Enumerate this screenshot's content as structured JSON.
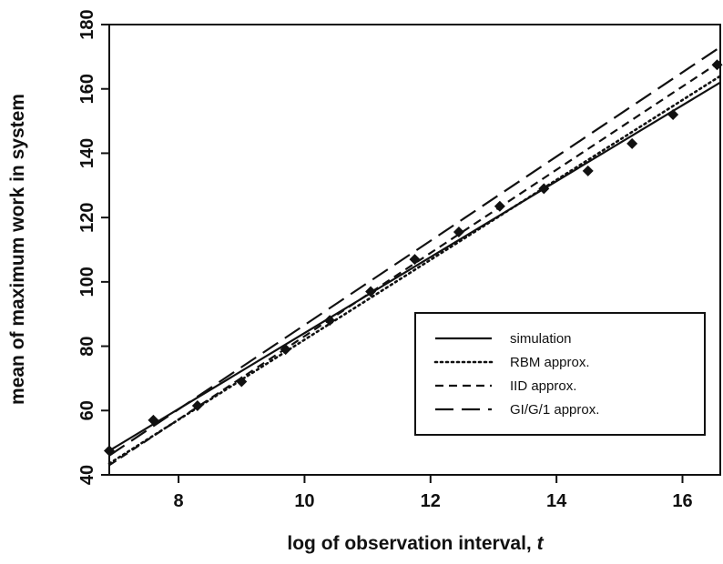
{
  "chart_data": {
    "type": "line",
    "xlabel": "log of observation interval,",
    "xlabel_var": "t",
    "ylabel": "mean of maximum work in system",
    "xlim": [
      6.9,
      16.6
    ],
    "ylim": [
      40,
      180
    ],
    "xticks": [
      8,
      10,
      12,
      14,
      16
    ],
    "yticks": [
      40,
      60,
      80,
      100,
      120,
      140,
      160,
      180
    ],
    "legend_position": "bottom-right",
    "series": [
      {
        "name": "simulation",
        "style": "solid",
        "kind": "line",
        "x": [
          6.9,
          16.6
        ],
        "y": [
          47.5,
          162.0
        ]
      },
      {
        "name": "RBM approx.",
        "style": "dotted",
        "kind": "line",
        "x": [
          6.9,
          16.6
        ],
        "y": [
          43.5,
          164.0
        ]
      },
      {
        "name": "IID approx.",
        "style": "dashed",
        "kind": "line",
        "x": [
          6.9,
          16.6
        ],
        "y": [
          43.0,
          168.5
        ]
      },
      {
        "name": "GI/G/1 approx.",
        "style": "longdash",
        "kind": "line",
        "x": [
          6.9,
          16.6
        ],
        "y": [
          46.0,
          173.0
        ]
      }
    ],
    "points": {
      "x": [
        6.9,
        7.6,
        8.3,
        9.0,
        9.7,
        10.4,
        11.05,
        11.75,
        12.45,
        13.1,
        13.8,
        14.5,
        15.2,
        15.85,
        16.55
      ],
      "y": [
        47.5,
        57.0,
        61.5,
        69.0,
        79.0,
        88.0,
        97.0,
        107.0,
        115.5,
        123.5,
        129.0,
        134.5,
        143.0,
        152.0,
        167.5
      ]
    }
  }
}
